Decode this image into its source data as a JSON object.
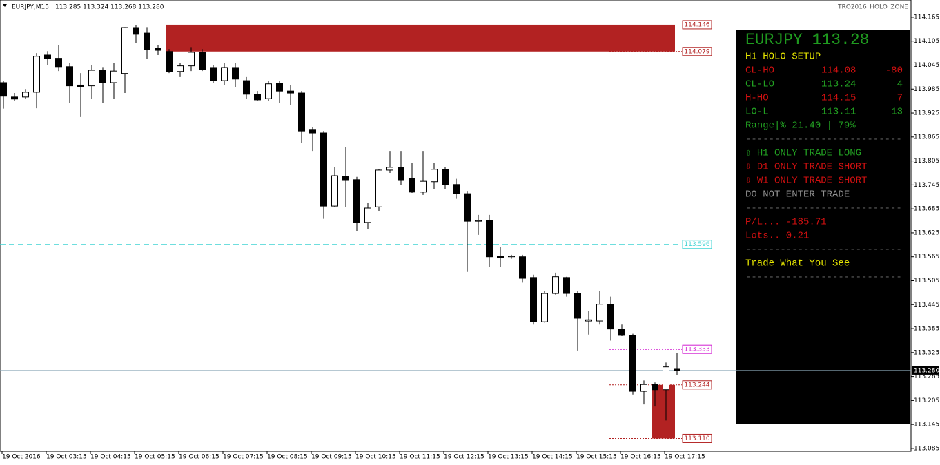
{
  "header": {
    "symbol": "EURJPY,M15",
    "quote": "113.285 113.324 113.268 113.280",
    "indicator": "TRO2016_HOLO_ZONE"
  },
  "chart_data": {
    "type": "candlestick",
    "x": [
      "19 Oct 2016",
      null,
      null,
      null,
      "19 Oct 03:15",
      null,
      null,
      null,
      "19 Oct 04:15",
      null,
      null,
      null,
      "19 Oct 05:15",
      null,
      null,
      null,
      "19 Oct 06:15",
      null,
      null,
      null,
      "19 Oct 07:15",
      null,
      null,
      null,
      "19 Oct 08:15",
      null,
      null,
      null,
      "19 Oct 09:15",
      null,
      null,
      null,
      "19 Oct 10:15",
      null,
      null,
      null,
      "19 Oct 11:15",
      null,
      null,
      null,
      "19 Oct 12:15",
      null,
      null,
      null,
      "19 Oct 13:15",
      null,
      null,
      null,
      "19 Oct 14:15",
      null,
      null,
      null,
      "19 Oct 15:15",
      null,
      null,
      null,
      "19 Oct 16:15",
      null,
      null,
      null,
      "19 Oct 17:15",
      null
    ],
    "open": [
      114.001,
      113.965,
      113.965,
      113.977,
      114.07,
      114.062,
      114.041,
      113.995,
      113.993,
      114.032,
      114.001,
      114.024,
      114.139,
      114.125,
      114.087,
      114.079,
      114.029,
      114.043,
      114.077,
      114.039,
      114.006,
      114.039,
      114.006,
      113.972,
      113.961,
      113.999,
      113.98,
      113.975,
      113.884,
      113.875,
      113.692,
      113.766,
      113.758,
      113.651,
      113.69,
      113.782,
      113.789,
      113.761,
      113.727,
      113.753,
      113.784,
      113.746,
      113.723,
      113.654,
      113.656,
      113.567,
      113.565,
      113.565,
      113.513,
      113.402,
      113.473,
      113.513,
      113.473,
      113.404,
      113.404,
      113.446,
      113.384,
      113.368,
      113.228,
      113.245,
      113.232,
      113.285
    ],
    "high": [
      114.005,
      113.975,
      113.985,
      114.075,
      114.08,
      114.095,
      114.05,
      114.025,
      114.045,
      114.04,
      114.05,
      114.14,
      114.145,
      114.14,
      114.095,
      114.085,
      114.05,
      114.09,
      114.085,
      114.045,
      114.05,
      114.05,
      114.015,
      113.98,
      114.005,
      114.005,
      113.995,
      113.98,
      113.89,
      113.88,
      113.79,
      113.84,
      113.765,
      113.7,
      113.785,
      113.83,
      113.83,
      113.8,
      113.83,
      113.8,
      113.79,
      113.76,
      113.73,
      113.67,
      113.67,
      113.59,
      113.57,
      113.57,
      113.52,
      113.48,
      113.525,
      113.515,
      113.48,
      113.43,
      113.48,
      113.465,
      113.395,
      113.372,
      113.255,
      113.25,
      113.3,
      113.324
    ],
    "low": [
      113.936,
      113.955,
      113.96,
      113.937,
      114.045,
      114.03,
      113.95,
      113.915,
      113.96,
      113.95,
      113.96,
      113.975,
      114.1,
      114.06,
      114.07,
      114.025,
      114.015,
      114.03,
      114.03,
      114.0,
      113.995,
      113.99,
      113.96,
      113.955,
      113.955,
      113.95,
      113.945,
      113.85,
      113.83,
      113.66,
      113.69,
      113.69,
      113.63,
      113.635,
      113.68,
      113.775,
      113.745,
      113.725,
      113.72,
      113.735,
      113.735,
      113.71,
      113.527,
      113.62,
      113.54,
      113.54,
      113.56,
      113.5,
      113.395,
      113.4,
      113.47,
      113.465,
      113.33,
      113.37,
      113.395,
      113.355,
      113.366,
      113.22,
      113.195,
      113.19,
      113.155,
      113.268
    ],
    "close": [
      113.967,
      113.96,
      113.977,
      114.067,
      114.062,
      114.041,
      113.993,
      113.99,
      114.032,
      114.001,
      114.03,
      114.139,
      114.122,
      114.084,
      114.082,
      114.029,
      114.043,
      114.077,
      114.034,
      114.006,
      114.039,
      114.01,
      113.972,
      113.958,
      113.998,
      113.98,
      113.975,
      113.88,
      113.875,
      113.692,
      113.768,
      113.756,
      113.651,
      113.687,
      113.782,
      113.789,
      113.756,
      113.727,
      113.754,
      113.784,
      113.746,
      113.723,
      113.654,
      113.656,
      113.565,
      113.563,
      113.567,
      113.511,
      113.402,
      113.473,
      113.515,
      113.473,
      113.411,
      113.407,
      113.446,
      113.384,
      113.368,
      113.228,
      113.245,
      113.232,
      113.289,
      113.28
    ],
    "up_color": "#ffffff",
    "down_color": "#000000",
    "ylim": [
      113.078,
      114.208
    ],
    "yticks": [
      114.165,
      114.105,
      114.045,
      113.985,
      113.925,
      113.865,
      113.805,
      113.745,
      113.685,
      113.625,
      113.565,
      113.505,
      113.445,
      113.385,
      113.325,
      113.265,
      113.205,
      113.145,
      113.085
    ],
    "levels": [
      {
        "value": 114.146,
        "color": "#b22222",
        "style": "none"
      },
      {
        "value": 114.079,
        "color": "#b22222",
        "style": "dotted"
      },
      {
        "value": 113.596,
        "color": "#3fd3d3",
        "style": "dashed"
      },
      {
        "value": 113.333,
        "color": "#d21fd2",
        "style": "dotted"
      },
      {
        "value": 113.244,
        "color": "#b22222",
        "style": "dotted"
      },
      {
        "value": 113.11,
        "label": "113.110",
        "color": "#b22222",
        "style": "dotted"
      }
    ],
    "price_line": {
      "value": 113.28,
      "label": "113.280",
      "color": "#8aa6b6"
    }
  },
  "panel": {
    "title": "EURJPY 113.28",
    "title_color": "#1f9a1f",
    "lines": [
      {
        "text": "H1 HOLO SETUP",
        "color": "#e6e600"
      },
      {
        "cells": [
          "CL-HO",
          "114.08",
          "-80"
        ],
        "color": "#d01010"
      },
      {
        "cells": [
          "CL-LO",
          "113.24",
          "4"
        ],
        "color": "#22a022"
      },
      {
        "cells": [
          "H-HO",
          "114.15",
          "7"
        ],
        "color": "#d01010"
      },
      {
        "cells": [
          "LO-L",
          "113.11",
          "13"
        ],
        "color": "#22a022"
      },
      {
        "text": "Range|% 21.40 | 79%",
        "color": "#22a022"
      },
      {
        "text": "---------------------------",
        "color": "#606060"
      },
      {
        "text": "⇧ H1 ONLY TRADE LONG",
        "color": "#22a022"
      },
      {
        "text": "⇩ D1 ONLY TRADE SHORT",
        "color": "#d01010"
      },
      {
        "text": "⇩ W1 ONLY TRADE SHORT",
        "color": "#d01010"
      },
      {
        "text": "DO NOT ENTER TRADE",
        "color": "#909090"
      },
      {
        "text": "---------------------------",
        "color": "#606060"
      },
      {
        "text": "P/L... -185.71",
        "color": "#d01010"
      },
      {
        "text": "Lots.. 0.21",
        "color": "#d01010"
      },
      {
        "text": "---------------------------",
        "color": "#606060"
      },
      {
        "text": "Trade What You See",
        "color": "#e6e600"
      },
      {
        "text": "---------------------------",
        "color": "#606060"
      }
    ]
  }
}
